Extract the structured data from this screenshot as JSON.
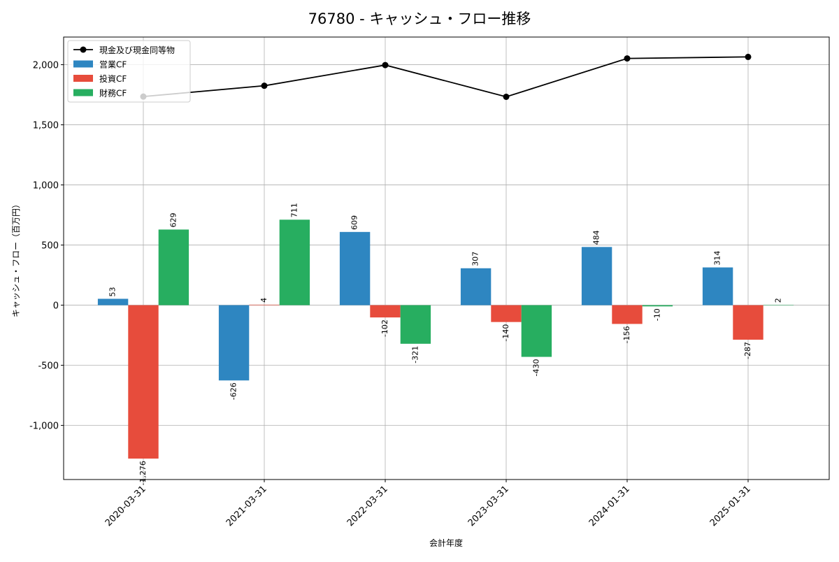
{
  "chart_data": {
    "type": "bar",
    "title": "76780 - キャッシュ・フロー推移",
    "xlabel": "会計年度",
    "ylabel": "キャッシュ・フロー（百万円）",
    "categories": [
      "2020-03-31",
      "2021-03-31",
      "2022-03-31",
      "2023-03-31",
      "2024-01-31",
      "2025-01-31"
    ],
    "series": [
      {
        "name": "営業CF",
        "kind": "bar",
        "color": "#2e86c1",
        "values": [
          53,
          -626,
          609,
          307,
          484,
          314
        ]
      },
      {
        "name": "投資CF",
        "kind": "bar",
        "color": "#e74c3c",
        "values": [
          -1276,
          4,
          -102,
          -140,
          -156,
          -287
        ]
      },
      {
        "name": "財務CF",
        "kind": "bar",
        "color": "#27ae60",
        "values": [
          629,
          711,
          -321,
          -430,
          -10,
          2
        ]
      },
      {
        "name": "現金及び現金同等物",
        "kind": "line",
        "color": "#000000",
        "values": [
          1735,
          1825,
          1997,
          1733,
          2052,
          2065
        ]
      }
    ],
    "ylim": [
      -1450,
      2230
    ],
    "yticks": [
      -1000,
      -500,
      0,
      500,
      1000,
      1500,
      2000
    ],
    "ytick_labels": [
      "-1,000",
      "-500",
      "0",
      "500",
      "1,000",
      "1,500",
      "2,000"
    ],
    "grid": true,
    "legend": "top-left"
  }
}
